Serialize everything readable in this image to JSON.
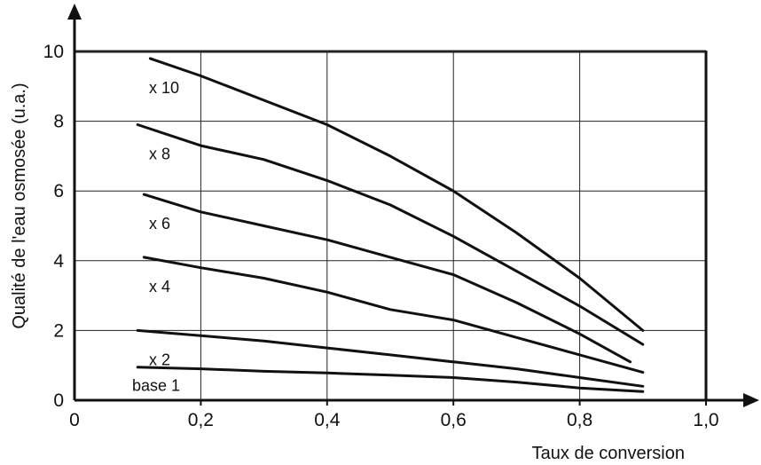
{
  "chart_data": {
    "type": "line",
    "xlabel": "Taux de conversion",
    "ylabel": "Qualité de l'eau osmosée  (u.a.)",
    "xlim": [
      0,
      1.0
    ],
    "ylim": [
      0,
      10
    ],
    "x_ticks": [
      "0",
      "0,2",
      "0,4",
      "0,6",
      "0,8",
      "1,0"
    ],
    "y_ticks": [
      "0",
      "2",
      "4",
      "6",
      "8",
      "10"
    ],
    "grid": true,
    "series": [
      {
        "name": "x 10",
        "x": [
          0.12,
          0.2,
          0.3,
          0.4,
          0.5,
          0.6,
          0.7,
          0.8,
          0.9
        ],
        "y": [
          9.8,
          9.3,
          8.6,
          7.9,
          7.0,
          6.0,
          4.8,
          3.5,
          2.0
        ]
      },
      {
        "name": "x 8",
        "x": [
          0.1,
          0.2,
          0.3,
          0.4,
          0.5,
          0.6,
          0.7,
          0.8,
          0.9
        ],
        "y": [
          7.9,
          7.3,
          6.9,
          6.3,
          5.6,
          4.7,
          3.7,
          2.7,
          1.6
        ]
      },
      {
        "name": "x 6",
        "x": [
          0.11,
          0.2,
          0.3,
          0.4,
          0.5,
          0.6,
          0.7,
          0.8,
          0.88
        ],
        "y": [
          5.9,
          5.4,
          5.0,
          4.6,
          4.1,
          3.6,
          2.8,
          1.9,
          1.1
        ]
      },
      {
        "name": "x 4",
        "x": [
          0.11,
          0.2,
          0.3,
          0.4,
          0.5,
          0.6,
          0.7,
          0.8,
          0.9
        ],
        "y": [
          4.1,
          3.8,
          3.5,
          3.1,
          2.6,
          2.3,
          1.8,
          1.3,
          0.8
        ]
      },
      {
        "name": "x 2",
        "x": [
          0.1,
          0.2,
          0.3,
          0.4,
          0.5,
          0.6,
          0.7,
          0.8,
          0.9
        ],
        "y": [
          2.0,
          1.85,
          1.7,
          1.5,
          1.3,
          1.1,
          0.9,
          0.65,
          0.4
        ]
      },
      {
        "name": "base 1",
        "x": [
          0.1,
          0.2,
          0.3,
          0.4,
          0.5,
          0.6,
          0.7,
          0.8,
          0.9
        ],
        "y": [
          0.95,
          0.9,
          0.83,
          0.78,
          0.72,
          0.65,
          0.52,
          0.35,
          0.25
        ]
      }
    ]
  }
}
